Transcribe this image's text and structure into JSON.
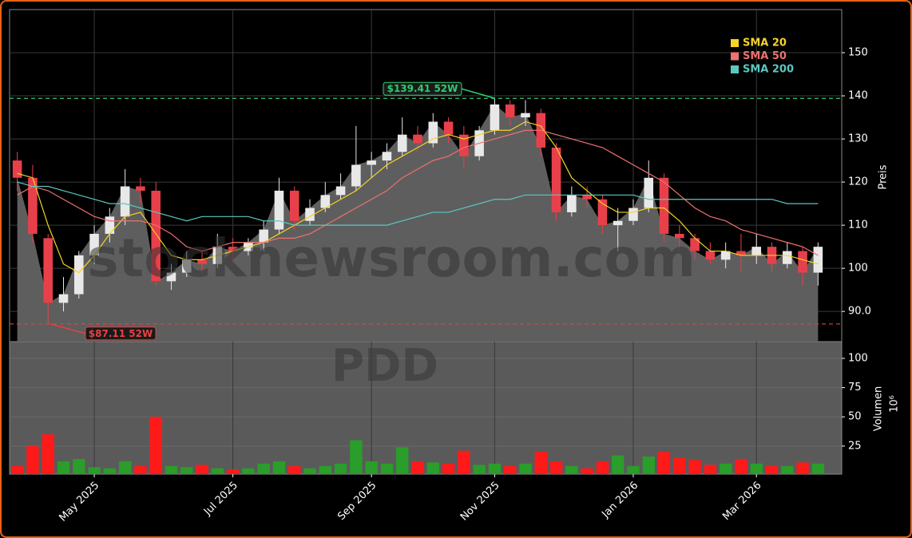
{
  "chart_data": {
    "type": "candlestick",
    "watermark": "stocknewsroom.com",
    "symbol": "PDD",
    "y_label": "Preis",
    "volume_label": "Volumen",
    "volume_unit": "10⁶",
    "categories": [
      null,
      null,
      null,
      null,
      null,
      "May 2025",
      null,
      null,
      null,
      null,
      null,
      null,
      null,
      null,
      "Jul 2025",
      null,
      null,
      null,
      null,
      null,
      null,
      null,
      null,
      "Sep 2025",
      null,
      null,
      null,
      null,
      null,
      null,
      null,
      "Nov 2025",
      null,
      null,
      null,
      null,
      null,
      null,
      null,
      null,
      "Jan 2026",
      null,
      null,
      null,
      null,
      null,
      null,
      null,
      "Mar 2026",
      null,
      null,
      null,
      null
    ],
    "open": [
      125,
      121,
      107,
      92,
      94,
      103,
      108,
      112,
      119,
      118,
      97,
      99,
      102,
      101,
      105,
      104,
      106,
      109,
      118,
      111,
      114,
      117,
      119,
      124,
      125,
      127,
      131,
      129,
      134,
      131,
      126,
      132,
      138,
      135,
      136,
      128,
      113,
      117,
      116,
      110,
      111,
      114,
      121,
      108,
      107,
      104,
      102,
      104,
      103,
      105,
      101,
      104,
      99
    ],
    "high": [
      127,
      124,
      108,
      98,
      104,
      110,
      114,
      123,
      121,
      120,
      101,
      104,
      104,
      108,
      107,
      107,
      111,
      121,
      119,
      116,
      120,
      122,
      133,
      127,
      129,
      135,
      133,
      136,
      135,
      133,
      133,
      139.41,
      139,
      139,
      137,
      129,
      119,
      119,
      117,
      114,
      116,
      125,
      122,
      110,
      108,
      106,
      106,
      108,
      108,
      106,
      106,
      105,
      106
    ],
    "low": [
      118,
      106,
      87.11,
      90,
      93,
      101,
      106,
      110,
      115,
      96,
      95,
      98,
      99,
      100,
      102,
      103,
      104,
      108,
      109,
      110,
      113,
      116,
      118,
      121,
      123,
      126,
      127,
      128,
      129,
      123,
      125,
      131,
      133,
      133,
      126,
      111,
      112,
      114,
      108,
      104,
      110,
      113,
      106,
      104,
      102,
      101,
      100,
      99,
      101,
      99,
      100,
      96,
      96
    ],
    "close": [
      121,
      108,
      92,
      94,
      103,
      108,
      112,
      119,
      118,
      97,
      99,
      102,
      101,
      105,
      104,
      106,
      109,
      118,
      111,
      114,
      117,
      119,
      124,
      125,
      127,
      131,
      129,
      134,
      131,
      126,
      132,
      138,
      135,
      136,
      128,
      113,
      117,
      116,
      110,
      111,
      114,
      121,
      108,
      107,
      104,
      102,
      104,
      103,
      105,
      101,
      104,
      99,
      105
    ],
    "up_color": "#e8e8e8",
    "down_color": "#e8404a",
    "area_color": "#5e5e5e",
    "series": [
      {
        "name": "SMA 20",
        "color": "#f5d327",
        "values": [
          122,
          121,
          110,
          101,
          99,
          103,
          108,
          112,
          113,
          108,
          103,
          102,
          102,
          103,
          104,
          105,
          106,
          108,
          110,
          112,
          114,
          116,
          118,
          121,
          124,
          126,
          128,
          130,
          131,
          130,
          131,
          132,
          132,
          134,
          133,
          128,
          121,
          118,
          115,
          113,
          113,
          114,
          114,
          111,
          107,
          104,
          104,
          103,
          103,
          103,
          103,
          102,
          101
        ]
      },
      {
        "name": "SMA 50",
        "color": "#f07070",
        "values": [
          117,
          119,
          118,
          116,
          114,
          112,
          111,
          111,
          111,
          110,
          108,
          105,
          104,
          105,
          106,
          106,
          106,
          107,
          107,
          108,
          110,
          112,
          114,
          116,
          118,
          121,
          123,
          125,
          126,
          128,
          129,
          130,
          131,
          132,
          132,
          131,
          130,
          129,
          128,
          126,
          124,
          122,
          120,
          117,
          114,
          112,
          111,
          109,
          108,
          107,
          106,
          105,
          103
        ]
      },
      {
        "name": "SMA 200",
        "color": "#5ac8c0",
        "values": [
          120,
          119,
          119,
          118,
          117,
          116,
          115,
          115,
          114,
          113,
          112,
          111,
          112,
          112,
          112,
          112,
          111,
          111,
          110,
          110,
          110,
          110,
          110,
          110,
          110,
          111,
          112,
          113,
          113,
          114,
          115,
          116,
          116,
          117,
          117,
          117,
          117,
          117,
          117,
          117,
          117,
          116,
          116,
          116,
          116,
          116,
          116,
          116,
          116,
          116,
          115,
          115,
          115
        ]
      }
    ],
    "ylim": [
      83,
      160
    ],
    "yticks": [
      {
        "value": 90,
        "label": "90.0"
      },
      100,
      110,
      120,
      130,
      140,
      150
    ],
    "annotations": [
      {
        "value": 139.41,
        "label": "$139.41 52W",
        "color": "#2ecc71"
      },
      {
        "value": 87.11,
        "label": "$87.11 52W",
        "color": "#e84040"
      }
    ],
    "volume": {
      "values": [
        8,
        25,
        35,
        12,
        14,
        7,
        6,
        12,
        8,
        50,
        8,
        7,
        9,
        6,
        5,
        6,
        10,
        12,
        8,
        6,
        8,
        10,
        30,
        12,
        10,
        24,
        12,
        11,
        10,
        21,
        9,
        10,
        8,
        10,
        20,
        12,
        8,
        6,
        12,
        17,
        8,
        16,
        20,
        15,
        13,
        9,
        10,
        14,
        10,
        8,
        8,
        11,
        10
      ],
      "up_color": "#2a9d2a",
      "down_color": "#ff1a1a",
      "ylim": [
        1,
        114.3
      ],
      "yticks": [
        25,
        50,
        75,
        100
      ]
    },
    "grid": true,
    "legend": "upper right"
  }
}
